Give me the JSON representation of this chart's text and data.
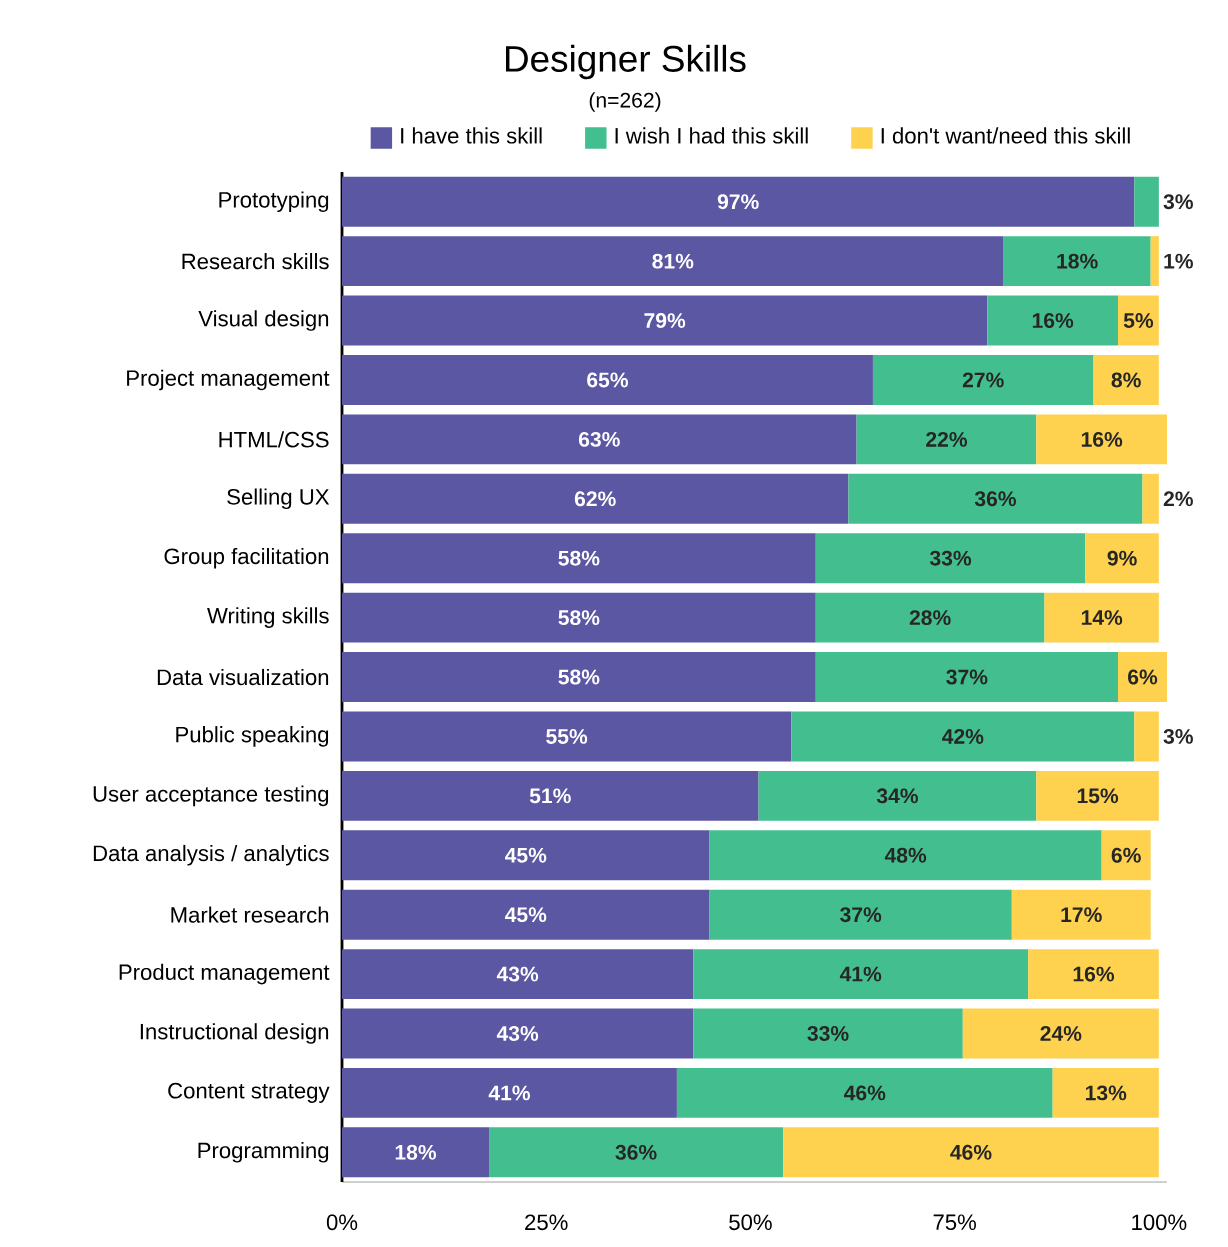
{
  "chart_data": {
    "type": "bar",
    "orientation": "horizontal",
    "stacked": true,
    "title": "Designer Skills",
    "subtitle": "(n=262)",
    "categories": [
      "Prototyping",
      "Research skills",
      "Visual design",
      "Project management",
      "HTML/CSS",
      "Selling UX",
      "Group facilitation",
      "Writing skills",
      "Data visualization",
      "Public speaking",
      "User acceptance testing",
      "Data analysis / analytics",
      "Market research",
      "Product management",
      "Instructional design",
      "Content strategy",
      "Programming"
    ],
    "series": [
      {
        "name": "I have this skill",
        "color": "#5b57a2",
        "values": [
          97,
          81,
          79,
          65,
          63,
          62,
          58,
          58,
          58,
          55,
          51,
          45,
          45,
          43,
          43,
          41,
          18
        ],
        "value_labels": [
          "97%",
          "81%",
          "79%",
          "65%",
          "63%",
          "62%",
          "58%",
          "58%",
          "58%",
          "55%",
          "51%",
          "45%",
          "45%",
          "43%",
          "43%",
          "41%",
          "18%"
        ]
      },
      {
        "name": "I wish I had this skill",
        "color": "#43bf8f",
        "values": [
          3,
          18,
          16,
          27,
          22,
          36,
          33,
          28,
          37,
          42,
          34,
          48,
          37,
          41,
          33,
          46,
          36
        ],
        "value_labels": [
          "3%",
          "18%",
          "16%",
          "27%",
          "22%",
          "36%",
          "33%",
          "28%",
          "37%",
          "42%",
          "34%",
          "48%",
          "37%",
          "41%",
          "33%",
          "46%",
          "36%"
        ]
      },
      {
        "name": "I don't want/need this skill",
        "color": "#fed24e",
        "values": [
          null,
          1,
          5,
          8,
          16,
          2,
          9,
          14,
          6,
          3,
          15,
          6,
          17,
          16,
          24,
          13,
          46
        ],
        "value_labels": [
          null,
          "1%",
          "5%",
          "8%",
          "16%",
          "2%",
          "9%",
          "14%",
          "6%",
          "3%",
          "15%",
          "6%",
          "17%",
          "16%",
          "24%",
          "13%",
          "46%"
        ]
      }
    ],
    "xlim": [
      0,
      101
    ],
    "xticks": [
      {
        "value": 0,
        "label": "0%"
      },
      {
        "value": 25,
        "label": "25%"
      },
      {
        "value": 50,
        "label": "50%"
      },
      {
        "value": 75,
        "label": "75%"
      },
      {
        "value": 100,
        "label": "100%"
      }
    ],
    "legend": "top",
    "grid": false
  }
}
